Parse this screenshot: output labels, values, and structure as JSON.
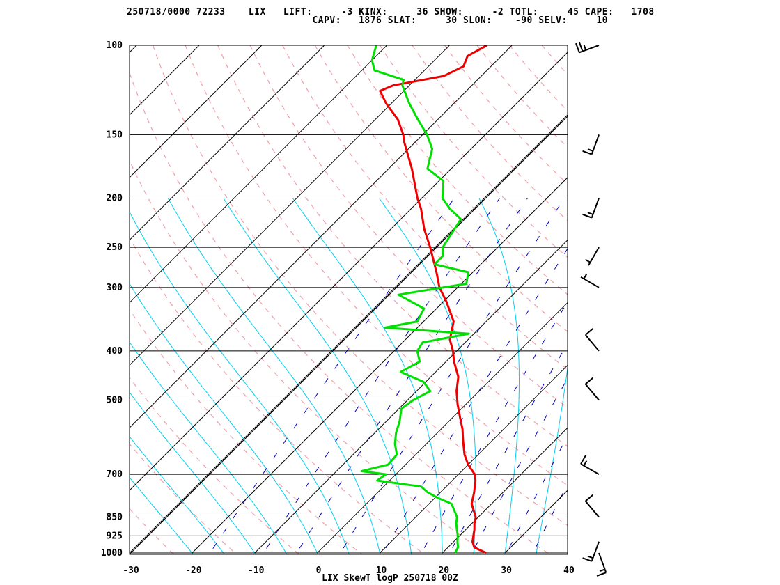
{
  "header": {
    "line1": "250718/0000 72233    LIX   LIFT:     -3 KINX:     36 SHOW:     -2 TOTL:     45 CAPE:   1708",
    "line2": "                                CAPV:   1876 SLAT:     30 SLON:    -90 SELV:     10"
  },
  "chart_data": {
    "type": "line",
    "title": "LIX SkewT logP 250718 00Z",
    "station": "LIX",
    "indices": {
      "LIFT": -3,
      "KINX": 36,
      "SHOW": -2,
      "TOTL": 45,
      "CAPE": 1708,
      "CAPV": 1876,
      "SLAT": 30,
      "SLON": -90,
      "SELV": 10
    },
    "xlabel": "",
    "ylabel": "",
    "x_ticks": [
      -30,
      -20,
      -10,
      0,
      10,
      20,
      30,
      40
    ],
    "xlim": [
      -30,
      40
    ],
    "y_ticks": [
      100,
      150,
      200,
      250,
      300,
      400,
      500,
      700,
      850,
      925,
      1000
    ],
    "ylim": [
      1000,
      100
    ],
    "y_scale": "log",
    "skew": "45 degrees",
    "grid": true,
    "colors": {
      "temperature": "#ee0000",
      "dewpoint": "#00e000",
      "dry_adiabats": "#f0a0a8",
      "moist_adiabats": "#00d0f0",
      "mixing_ratio": "#0000c0",
      "isotherms": "#000000",
      "isobars": "#000000",
      "wind_barbs": "#000000"
    },
    "series": [
      {
        "key": "temperature",
        "points": [
          [
            1000,
            27.0
          ],
          [
            975,
            24.2
          ],
          [
            950,
            23.0
          ],
          [
            925,
            22.2
          ],
          [
            900,
            21.4
          ],
          [
            875,
            20.4
          ],
          [
            850,
            19.6
          ],
          [
            800,
            16.8
          ],
          [
            760,
            15.4
          ],
          [
            720,
            13.7
          ],
          [
            700,
            12.6
          ],
          [
            670,
            10.0
          ],
          [
            640,
            7.8
          ],
          [
            600,
            5.3
          ],
          [
            570,
            3.4
          ],
          [
            540,
            1.1
          ],
          [
            510,
            -1.3
          ],
          [
            480,
            -3.6
          ],
          [
            450,
            -5.6
          ],
          [
            420,
            -8.7
          ],
          [
            400,
            -10.6
          ],
          [
            380,
            -12.9
          ],
          [
            350,
            -15.2
          ],
          [
            320,
            -19.5
          ],
          [
            300,
            -22.9
          ],
          [
            280,
            -25.8
          ],
          [
            250,
            -30.8
          ],
          [
            230,
            -34.7
          ],
          [
            210,
            -38.4
          ],
          [
            200,
            -40.7
          ],
          [
            175,
            -46.3
          ],
          [
            155,
            -51.8
          ],
          [
            150,
            -53.1
          ],
          [
            140,
            -56.4
          ],
          [
            130,
            -60.9
          ],
          [
            123,
            -63.8
          ],
          [
            120,
            -62.6
          ],
          [
            115,
            -56.0
          ],
          [
            110,
            -54.4
          ],
          [
            105,
            -55.4
          ],
          [
            100,
            -54.0
          ]
        ]
      },
      {
        "key": "dewpoint",
        "points": [
          [
            1000,
            22.0
          ],
          [
            975,
            21.6
          ],
          [
            950,
            20.6
          ],
          [
            925,
            19.7
          ],
          [
            900,
            18.6
          ],
          [
            875,
            17.5
          ],
          [
            850,
            16.6
          ],
          [
            800,
            13.6
          ],
          [
            780,
            10.6
          ],
          [
            760,
            8.0
          ],
          [
            740,
            6.0
          ],
          [
            720,
            -2.0
          ],
          [
            700,
            -1.6
          ],
          [
            690,
            -6.0
          ],
          [
            670,
            -2.8
          ],
          [
            640,
            -3.0
          ],
          [
            610,
            -5.0
          ],
          [
            580,
            -6.6
          ],
          [
            550,
            -7.9
          ],
          [
            520,
            -9.6
          ],
          [
            500,
            -9.1
          ],
          [
            480,
            -7.8
          ],
          [
            460,
            -10.4
          ],
          [
            440,
            -15.6
          ],
          [
            420,
            -14.2
          ],
          [
            400,
            -16.3
          ],
          [
            385,
            -16.8
          ],
          [
            370,
            -10.8
          ],
          [
            360,
            -25.2
          ],
          [
            350,
            -21.0
          ],
          [
            330,
            -22.0
          ],
          [
            310,
            -28.3
          ],
          [
            295,
            -19.2
          ],
          [
            280,
            -20.7
          ],
          [
            270,
            -27.4
          ],
          [
            260,
            -27.4
          ],
          [
            250,
            -28.8
          ],
          [
            240,
            -29.3
          ],
          [
            220,
            -30.4
          ],
          [
            210,
            -33.8
          ],
          [
            200,
            -36.7
          ],
          [
            185,
            -39.3
          ],
          [
            175,
            -43.8
          ],
          [
            160,
            -46.2
          ],
          [
            150,
            -49.3
          ],
          [
            140,
            -53.2
          ],
          [
            130,
            -57.2
          ],
          [
            120,
            -61.1
          ],
          [
            117,
            -61.8
          ],
          [
            112,
            -68.0
          ],
          [
            107,
            -70.0
          ],
          [
            100,
            -71.7
          ]
        ]
      }
    ],
    "wind_barbs_kt": [
      {
        "p": 1000,
        "dir": 160,
        "speed": 15
      },
      {
        "p": 950,
        "dir": 200,
        "speed": 15
      },
      {
        "p": 850,
        "dir": 320,
        "speed": 10
      },
      {
        "p": 700,
        "dir": 300,
        "speed": 15
      },
      {
        "p": 500,
        "dir": 320,
        "speed": 10
      },
      {
        "p": 400,
        "dir": 320,
        "speed": 10
      },
      {
        "p": 300,
        "dir": 300,
        "speed": 5
      },
      {
        "p": 250,
        "dir": 210,
        "speed": 5
      },
      {
        "p": 200,
        "dir": 200,
        "speed": 15
      },
      {
        "p": 150,
        "dir": 200,
        "speed": 15
      },
      {
        "p": 100,
        "dir": 250,
        "speed": 25
      }
    ]
  }
}
